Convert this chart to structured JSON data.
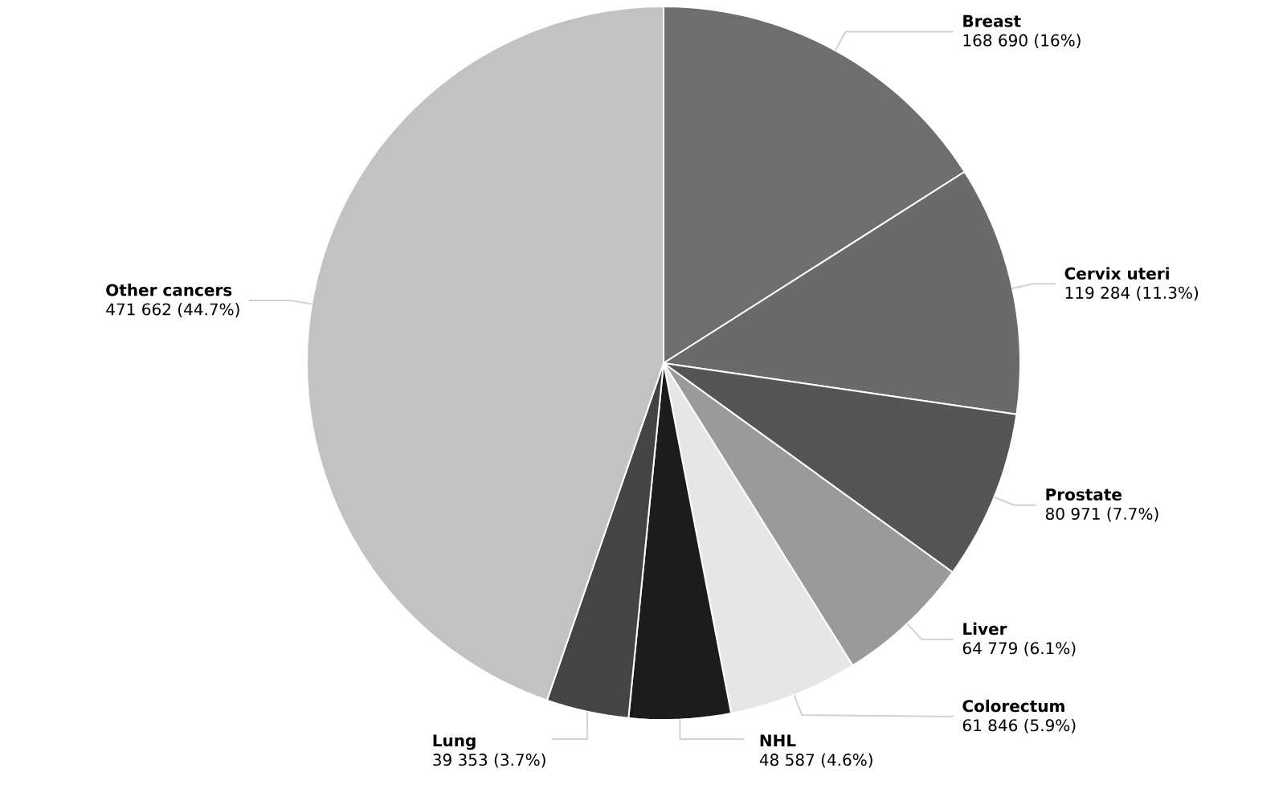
{
  "chart_data": {
    "type": "pie",
    "categories": [
      "Breast",
      "Cervix uteri",
      "Prostate",
      "Liver",
      "Colorectum",
      "NHL",
      "Lung",
      "Other cancers"
    ],
    "values": [
      168690,
      119284,
      80971,
      64779,
      61846,
      48587,
      39353,
      471662
    ],
    "value_labels": [
      "168 690 (16%)",
      "119 284 (11.3%)",
      "80 971 (7.7%)",
      "64 779 (6.1%)",
      "61 846 (5.9%)",
      "48 587 (4.6%)",
      "39 353 (3.7%)",
      "471 662 (44.7%)"
    ],
    "colors": [
      "#6e6e6e",
      "#6a6a6a",
      "#555555",
      "#9a9a9a",
      "#e6e6e6",
      "#1c1c1c",
      "#444444",
      "#c2c2c2"
    ]
  }
}
